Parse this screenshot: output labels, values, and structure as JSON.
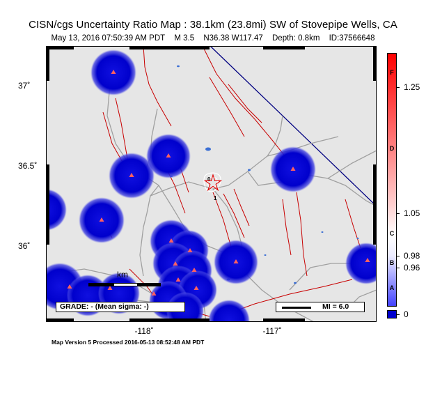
{
  "header": {
    "title": "CISN/cgs Uncertainty Ratio Map : 38.1km (23.8mi) SW of Stovepipe Wells, CA",
    "datetime": "May 13, 2016 07:50:39 AM PDT",
    "magnitude": "M 3.5",
    "location": "N36.38 W117.47",
    "depth": "Depth: 0.8km",
    "event_id": "ID:37566648"
  },
  "axes": {
    "lat_labels": [
      "37˚",
      "36.5˚",
      "36˚"
    ],
    "lon_labels": [
      "-118˚",
      "-117˚"
    ]
  },
  "legend": {
    "grade": "GRADE: - (Mean sigma: -)",
    "mi": "MI = 6.0",
    "scale_label": "km"
  },
  "colorbar": {
    "letters": [
      "F",
      "D",
      "C",
      "B",
      "A"
    ],
    "ticks": [
      "1.25",
      "1.05",
      "0.98",
      "0.96",
      "0"
    ],
    "colors": {
      "high": "#ff0000",
      "mid": "#ffffff",
      "low": "#2020ff",
      "bottom": "#0000cc"
    }
  },
  "markers": {
    "epicenter_labels": [
      "0",
      "1"
    ]
  },
  "colors": {
    "land": "#e6e6e6",
    "fault": "#c80000",
    "road": "#a0a0a0",
    "station_blob": "#0000cc",
    "station": "#ff6060",
    "boundary": "#000080",
    "water": "#3b6fd4"
  },
  "footer": "Map Version 5 Processed 2016-05-13 08:52:48 AM PDT"
}
